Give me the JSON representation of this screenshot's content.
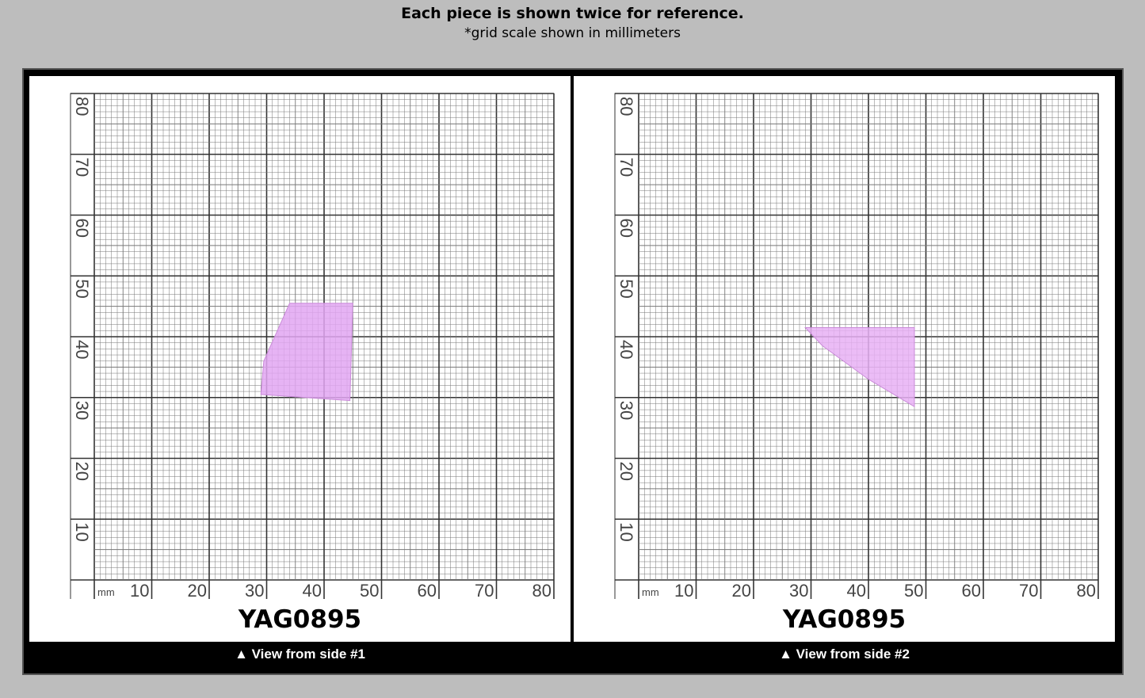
{
  "header": {
    "title": "Each piece is shown twice for reference.",
    "subtitle": "*grid scale shown in millimeters"
  },
  "grid": {
    "unit_label": "mm",
    "x_labels": [
      "10",
      "20",
      "30",
      "40",
      "50",
      "60",
      "70",
      "80"
    ],
    "y_labels": [
      "10",
      "20",
      "30",
      "40",
      "50",
      "60",
      "70",
      "80"
    ]
  },
  "panels": [
    {
      "code": "YAG0895",
      "caption": "▲ View from side #1",
      "stone_color": "#e2a6f2"
    },
    {
      "code": "YAG0895",
      "caption": "▲ View from side #2",
      "stone_color": "#e8b0f4"
    }
  ]
}
